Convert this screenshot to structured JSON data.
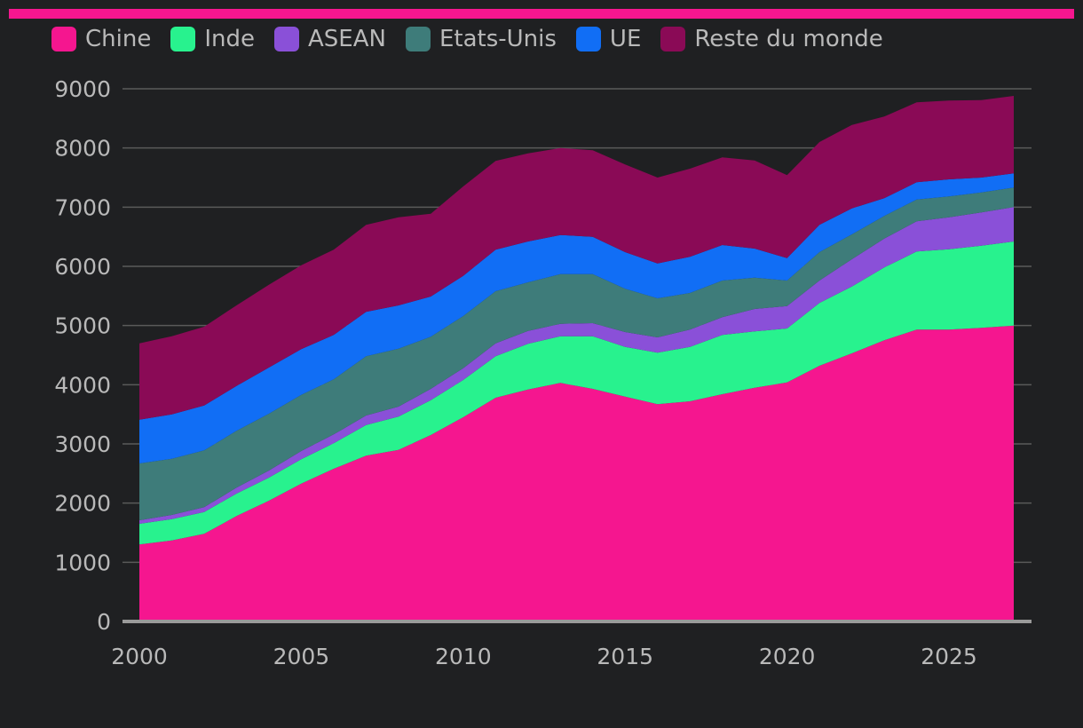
{
  "colors": {
    "background": "#1f2022",
    "accent_bar": "#f5168f",
    "grid": "#5a5a5a",
    "axis": "#9a9a9a",
    "text": "#b9b9b9"
  },
  "chart_data": {
    "type": "area",
    "stacked": true,
    "title": "",
    "xlabel": "",
    "ylabel": "",
    "legend_position": "top",
    "grid": true,
    "xlim": [
      2000,
      2027
    ],
    "ylim": [
      0,
      9000
    ],
    "x_ticks": [
      2000,
      2005,
      2010,
      2015,
      2020,
      2025
    ],
    "y_ticks": [
      0,
      1000,
      2000,
      3000,
      4000,
      5000,
      6000,
      7000,
      8000,
      9000
    ],
    "x": [
      2000,
      2001,
      2002,
      2003,
      2004,
      2005,
      2006,
      2007,
      2008,
      2009,
      2010,
      2011,
      2012,
      2013,
      2014,
      2015,
      2016,
      2017,
      2018,
      2019,
      2020,
      2021,
      2022,
      2023,
      2024,
      2025,
      2026,
      2027
    ],
    "series": [
      {
        "name": "Chine",
        "color": "#f5168f",
        "values": [
          1300,
          1370,
          1480,
          1780,
          2040,
          2330,
          2580,
          2800,
          2900,
          3150,
          3450,
          3780,
          3920,
          4030,
          3930,
          3800,
          3670,
          3720,
          3840,
          3950,
          4040,
          4320,
          4530,
          4750,
          4930,
          4930,
          4960,
          5000
        ]
      },
      {
        "name": "Inde",
        "color": "#28f28e",
        "values": [
          350,
          360,
          370,
          380,
          390,
          410,
          430,
          520,
          560,
          590,
          630,
          700,
          770,
          790,
          890,
          840,
          870,
          920,
          1000,
          950,
          910,
          1060,
          1130,
          1230,
          1320,
          1360,
          1390,
          1420
        ]
      },
      {
        "name": "ASEAN",
        "color": "#8a50d8",
        "values": [
          60,
          70,
          80,
          100,
          120,
          140,
          150,
          160,
          170,
          190,
          200,
          220,
          220,
          210,
          220,
          250,
          260,
          290,
          300,
          380,
          380,
          380,
          460,
          490,
          510,
          540,
          560,
          580
        ]
      },
      {
        "name": "Etats-Unis",
        "color": "#3e7c7a",
        "values": [
          960,
          950,
          960,
          960,
          960,
          950,
          930,
          1000,
          980,
          880,
          880,
          880,
          820,
          840,
          830,
          730,
          660,
          620,
          620,
          530,
          430,
          480,
          420,
          380,
          370,
          350,
          340,
          330
        ]
      },
      {
        "name": "UE",
        "color": "#116ef5",
        "values": [
          740,
          750,
          760,
          760,
          780,
          770,
          750,
          750,
          730,
          680,
          680,
          700,
          690,
          660,
          630,
          620,
          590,
          610,
          600,
          490,
          380,
          460,
          440,
          300,
          290,
          290,
          250,
          240
        ]
      },
      {
        "name": "Reste du monde",
        "color": "#8a0a56",
        "values": [
          1290,
          1320,
          1330,
          1360,
          1400,
          1420,
          1440,
          1470,
          1490,
          1400,
          1510,
          1500,
          1490,
          1470,
          1460,
          1480,
          1450,
          1490,
          1480,
          1490,
          1400,
          1400,
          1410,
          1380,
          1350,
          1330,
          1310,
          1310
        ]
      }
    ]
  }
}
